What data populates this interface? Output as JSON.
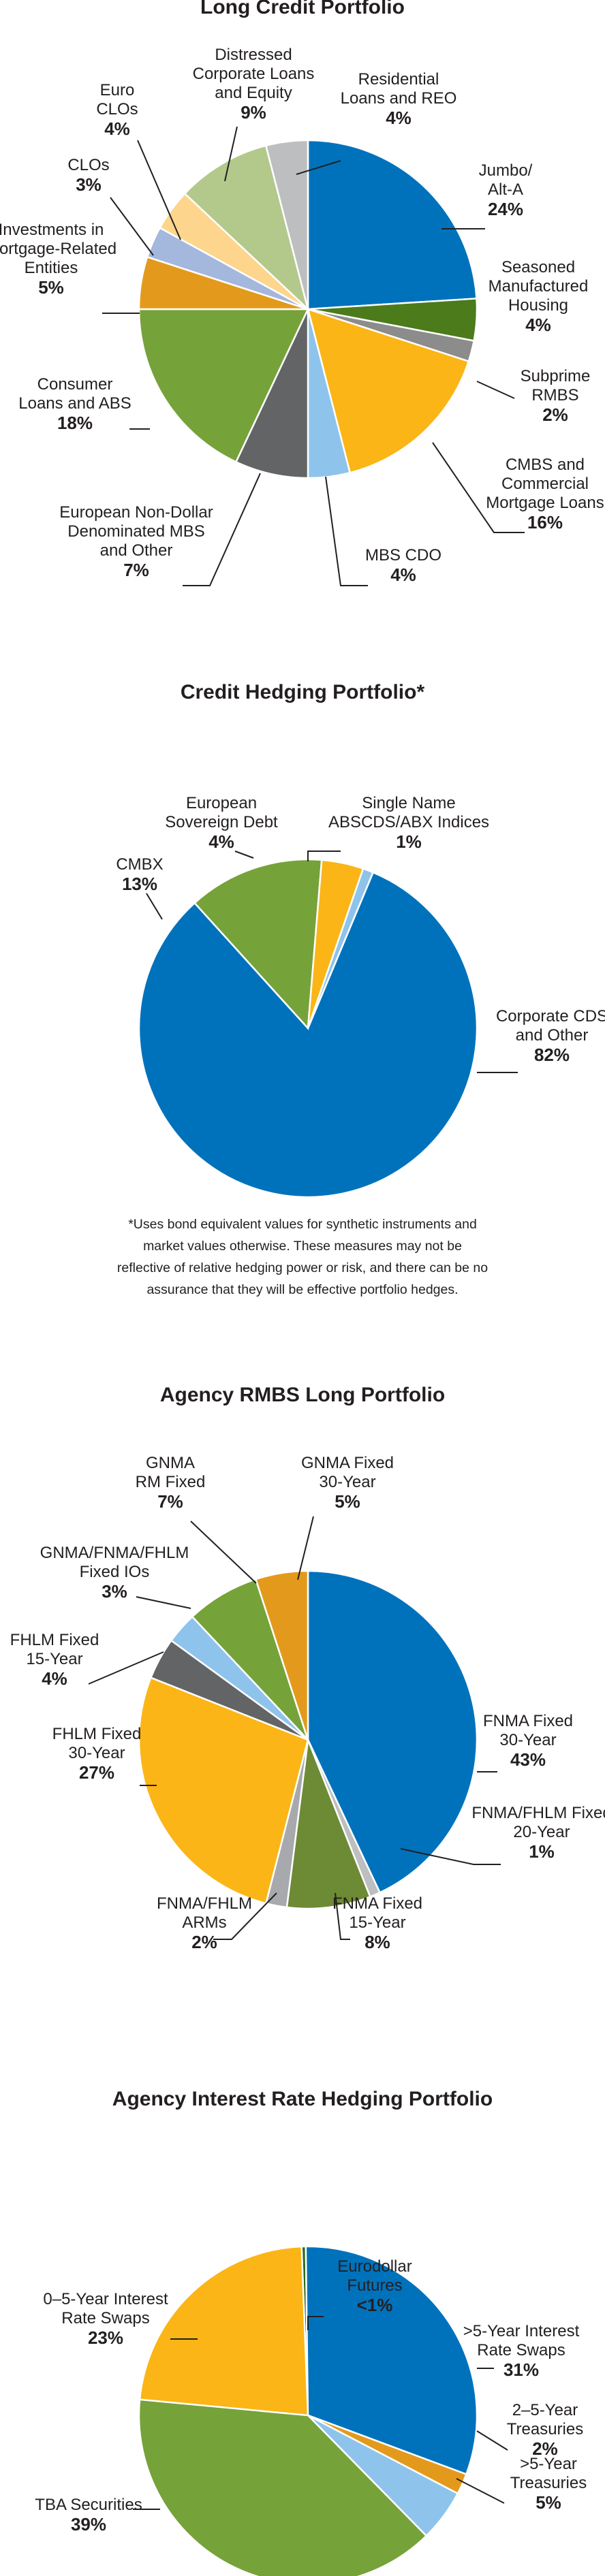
{
  "chart_data": [
    {
      "type": "pie",
      "title": "Long Credit Portfolio",
      "slices": [
        {
          "label": [
            "Jumbo/",
            "Alt-A"
          ],
          "value": 24,
          "display": "24%",
          "color": "#0072bc"
        },
        {
          "label": [
            "Seasoned",
            "Manufactured",
            "Housing"
          ],
          "value": 4,
          "display": "4%",
          "color": "#4b7b1a"
        },
        {
          "label": [
            "Subprime",
            "RMBS"
          ],
          "value": 2,
          "display": "2%",
          "color": "#8c8c8c"
        },
        {
          "label": [
            "CMBS and",
            "Commercial",
            "Mortgage Loans"
          ],
          "value": 16,
          "display": "16%",
          "color": "#fbb516"
        },
        {
          "label": [
            "MBS CDO"
          ],
          "value": 4,
          "display": "4%",
          "color": "#8ec3ec"
        },
        {
          "label": [
            "European Non-Dollar",
            "Denominated MBS",
            "and Other"
          ],
          "value": 7,
          "display": "7%",
          "color": "#636466"
        },
        {
          "label": [
            "Consumer",
            "Loans and ABS"
          ],
          "value": 18,
          "display": "18%",
          "color": "#76a23a"
        },
        {
          "label": [
            "Investments in",
            "Mortgage-Related",
            "Entities"
          ],
          "value": 5,
          "display": "5%",
          "color": "#e39a1c"
        },
        {
          "label": [
            "CLOs"
          ],
          "value": 3,
          "display": "3%",
          "color": "#a4b7dd"
        },
        {
          "label": [
            "Euro",
            "CLOs"
          ],
          "value": 4,
          "display": "4%",
          "color": "#fdd58c"
        },
        {
          "label": [
            "Distressed",
            "Corporate Loans",
            "and Equity"
          ],
          "value": 9,
          "display": "9%",
          "color": "#b3c98c"
        },
        {
          "label": [
            "Residential",
            "Loans and REO"
          ],
          "value": 4,
          "display": "4%",
          "color": "#bcbec0"
        }
      ]
    },
    {
      "type": "pie",
      "title": "Credit Hedging Portfolio*",
      "slices": [
        {
          "label": [
            "Corporate CDS",
            "and Other"
          ],
          "value": 82,
          "display": "82%",
          "color": "#0072bc"
        },
        {
          "label": [
            "CMBX"
          ],
          "value": 13,
          "display": "13%",
          "color": "#76a23a"
        },
        {
          "label": [
            "European",
            "Sovereign Debt"
          ],
          "value": 4,
          "display": "4%",
          "color": "#fbb516"
        },
        {
          "label": [
            "Single Name",
            "ABSCDS/ABX Indices"
          ],
          "value": 1,
          "display": "1%",
          "color": "#8ec3ec"
        }
      ],
      "footnote": "*Uses bond equivalent values for synthetic instruments and market values otherwise. These measures may not be reflective of relative hedging power or risk, and there can be no assurance that they will be effective portfolio hedges."
    },
    {
      "type": "pie",
      "title": "Agency RMBS Long Portfolio",
      "slices": [
        {
          "label": [
            "FNMA Fixed",
            "30-Year"
          ],
          "value": 43,
          "display": "43%",
          "color": "#0072bc"
        },
        {
          "label": [
            "FNMA/FHLM Fixed",
            "20-Year"
          ],
          "value": 1,
          "display": "1%",
          "color": "#bcbec0"
        },
        {
          "label": [
            "FNMA Fixed",
            "15-Year"
          ],
          "value": 8,
          "display": "8%",
          "color": "#6d8a35"
        },
        {
          "label": [
            "FNMA/FHLM",
            "ARMs"
          ],
          "value": 2,
          "display": "2%",
          "color": "#a7a9ac"
        },
        {
          "label": [
            "FHLM Fixed",
            "30-Year"
          ],
          "value": 27,
          "display": "27%",
          "color": "#fbb516"
        },
        {
          "label": [
            "FHLM Fixed",
            "15-Year"
          ],
          "value": 4,
          "display": "4%",
          "color": "#636466"
        },
        {
          "label": [
            "GNMA/FNMA/FHLM",
            "Fixed IOs"
          ],
          "value": 3,
          "display": "3%",
          "color": "#8ec3ec"
        },
        {
          "label": [
            "GNMA",
            "RM Fixed"
          ],
          "value": 7,
          "display": "7%",
          "color": "#76a23a"
        },
        {
          "label": [
            "GNMA Fixed",
            "30-Year"
          ],
          "value": 5,
          "display": "5%",
          "color": "#e39a1c"
        }
      ]
    },
    {
      "type": "pie",
      "title": "Agency Interest Rate Hedging Portfolio",
      "slices": [
        {
          "label": [
            "Eurodollar",
            "Futures"
          ],
          "value": 0.4,
          "display": "<1%",
          "color": "#2e6b1a"
        },
        {
          "label": [
            ">5-Year Interest",
            "Rate Swaps"
          ],
          "value": 31,
          "display": "31%",
          "color": "#0072bc"
        },
        {
          "label": [
            "2–5-Year",
            "Treasuries"
          ],
          "value": 2,
          "display": "2%",
          "color": "#e39a1c"
        },
        {
          "label": [
            ">5-Year",
            "Treasuries"
          ],
          "value": 5,
          "display": "5%",
          "color": "#8ec3ec"
        },
        {
          "label": [
            "TBA Securities"
          ],
          "value": 39,
          "display": "39%",
          "color": "#76a23a"
        },
        {
          "label": [
            "0–5-Year Interest",
            "Rate Swaps"
          ],
          "value": 23,
          "display": "23%",
          "color": "#fbb516"
        }
      ]
    }
  ]
}
